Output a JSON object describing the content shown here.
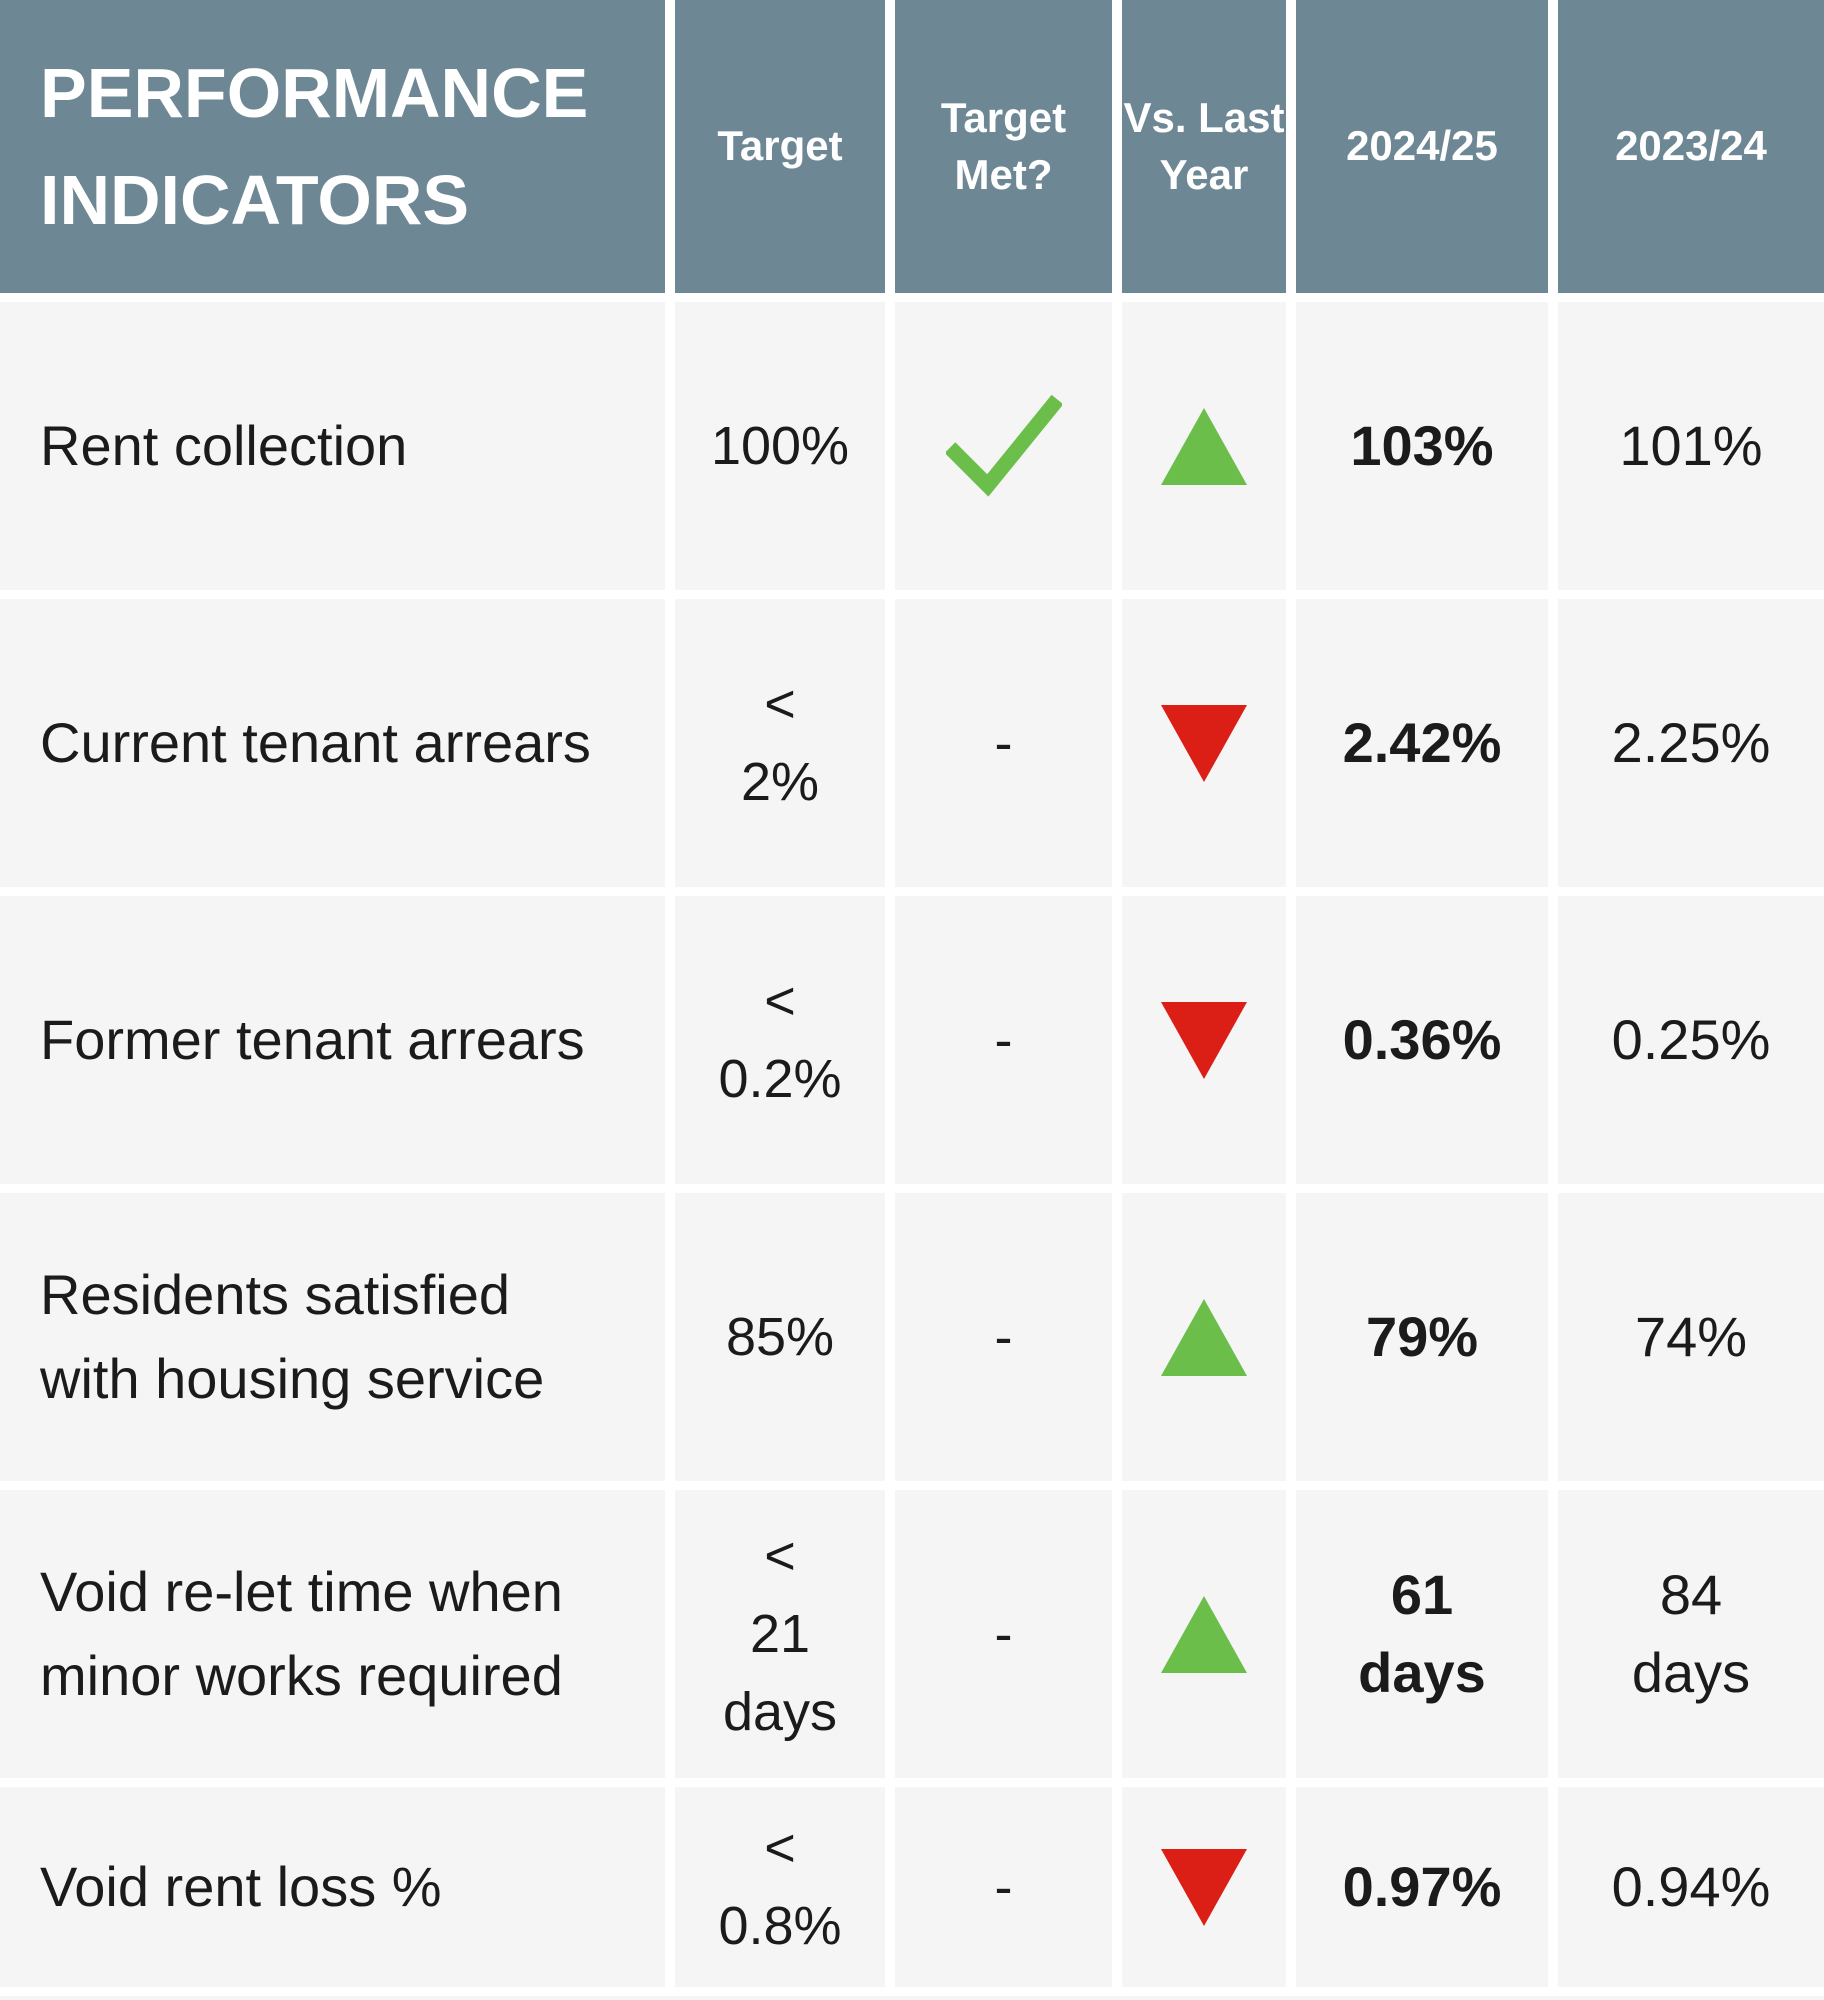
{
  "chart_data": {
    "type": "table",
    "title": "PERFORMANCE INDICATORS",
    "title_lines": [
      "PERFORMANCE",
      "INDICATORS"
    ],
    "columns": [
      "Target",
      "Target Met?",
      "Vs. Last Year",
      "2024/25",
      "2023/24"
    ],
    "rows": [
      {
        "indicator": "Rent collection",
        "target": "100%",
        "target_met": "check",
        "vs_last_year": "up",
        "value_2024_25": "103%",
        "value_2023_24": "101%"
      },
      {
        "indicator": "Current tenant arrears",
        "target": "<\n2%",
        "target_met": "dash",
        "vs_last_year": "down",
        "value_2024_25": "2.42%",
        "value_2023_24": "2.25%"
      },
      {
        "indicator": "Former tenant arrears",
        "target": "<\n0.2%",
        "target_met": "dash",
        "vs_last_year": "down",
        "value_2024_25": "0.36%",
        "value_2023_24": "0.25%"
      },
      {
        "indicator": "Residents satisfied with housing service",
        "target": "85%",
        "target_met": "dash",
        "vs_last_year": "up",
        "value_2024_25": "79%",
        "value_2023_24": "74%"
      },
      {
        "indicator": "Void re-let time when minor works required",
        "target": "<\n21\ndays",
        "target_met": "dash",
        "vs_last_year": "up",
        "value_2024_25": "61\ndays",
        "value_2023_24": "84\ndays"
      },
      {
        "indicator": "Void rent loss %",
        "target": "<\n0.8%",
        "target_met": "dash",
        "vs_last_year": "down",
        "value_2024_25": "0.97%",
        "value_2023_24": "0.94%"
      }
    ],
    "icons": {
      "check": "check-icon",
      "up": "trend-up-triangle-icon",
      "down": "trend-down-triangle-icon",
      "dash_text": "-"
    },
    "colors": {
      "header_bg": "#6D8794",
      "cell_bg": "#F5F5F5",
      "grid_lines": "#FFFFFF",
      "positive_green": "#6CBE4B",
      "negative_red": "#DC1F16",
      "header_text": "#FFFFFF",
      "body_text": "#1B1B1B"
    },
    "layout": {
      "grid": "on",
      "legend": "none"
    }
  }
}
